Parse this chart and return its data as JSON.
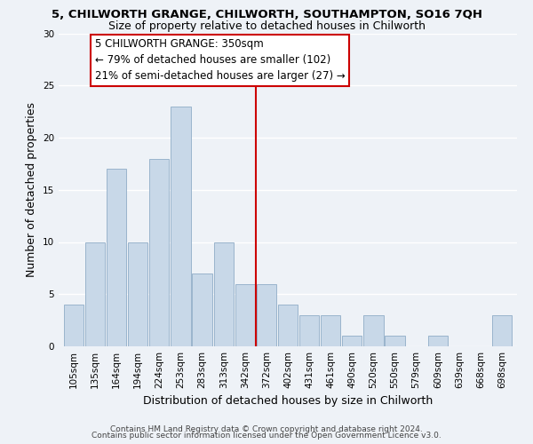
{
  "title": "5, CHILWORTH GRANGE, CHILWORTH, SOUTHAMPTON, SO16 7QH",
  "subtitle": "Size of property relative to detached houses in Chilworth",
  "xlabel": "Distribution of detached houses by size in Chilworth",
  "ylabel": "Number of detached properties",
  "bar_labels": [
    "105sqm",
    "135sqm",
    "164sqm",
    "194sqm",
    "224sqm",
    "253sqm",
    "283sqm",
    "313sqm",
    "342sqm",
    "372sqm",
    "402sqm",
    "431sqm",
    "461sqm",
    "490sqm",
    "520sqm",
    "550sqm",
    "579sqm",
    "609sqm",
    "639sqm",
    "668sqm",
    "698sqm"
  ],
  "bar_heights": [
    4,
    10,
    17,
    10,
    18,
    23,
    7,
    10,
    6,
    6,
    4,
    3,
    3,
    1,
    3,
    1,
    0,
    1,
    0,
    0,
    3
  ],
  "bar_color": "#c8d8e8",
  "bar_edge_color": "#9ab4cc",
  "reference_line_x": 8.5,
  "annotation_title": "5 CHILWORTH GRANGE: 350sqm",
  "annotation_line1": "← 79% of detached houses are smaller (102)",
  "annotation_line2": "21% of semi-detached houses are larger (27) →",
  "annotation_box_color": "#ffffff",
  "annotation_border_color": "#cc0000",
  "ref_line_color": "#cc0000",
  "ylim": [
    0,
    30
  ],
  "yticks": [
    0,
    5,
    10,
    15,
    20,
    25,
    30
  ],
  "footer1": "Contains HM Land Registry data © Crown copyright and database right 2024.",
  "footer2": "Contains public sector information licensed under the Open Government Licence v3.0.",
  "background_color": "#eef2f7",
  "grid_color": "#ffffff",
  "title_fontsize": 9.5,
  "subtitle_fontsize": 9,
  "axis_label_fontsize": 9,
  "tick_fontsize": 7.5,
  "annotation_fontsize": 8.5,
  "footer_fontsize": 6.5
}
